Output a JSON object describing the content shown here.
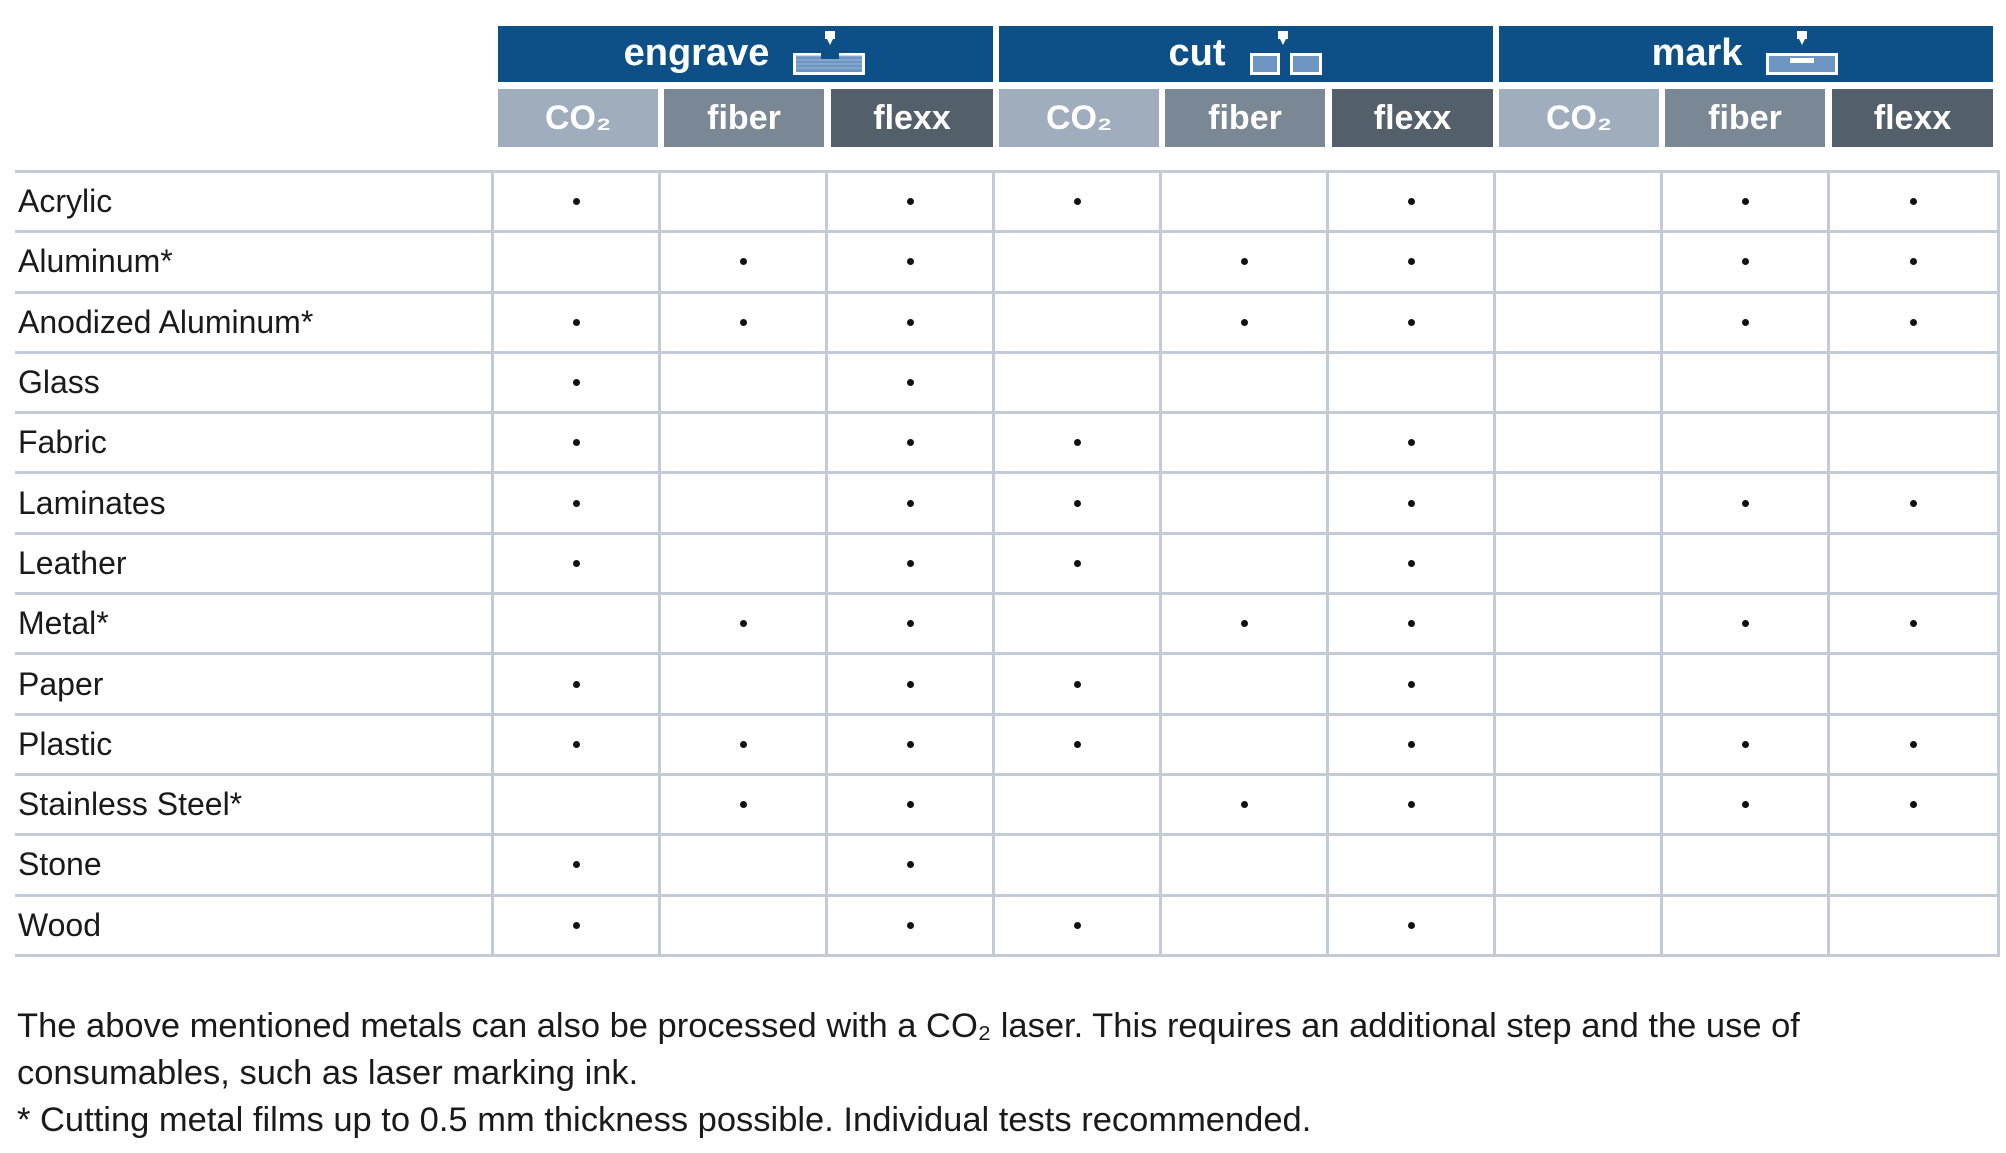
{
  "header": {
    "groups": [
      {
        "label": "engrave",
        "icon": "engrave-icon"
      },
      {
        "label": "cut",
        "icon": "cut-icon"
      },
      {
        "label": "mark",
        "icon": "mark-icon"
      }
    ],
    "subcolumns": [
      "CO₂",
      "fiber",
      "flexx"
    ]
  },
  "colors": {
    "group_header": "#0d4f87",
    "co2_header": "#9fadbd",
    "fiber_header": "#7a8896",
    "flexx_header": "#535f6b",
    "grid_line": "#c3ccd6"
  },
  "table": {
    "column_order": [
      "engrave-CO₂",
      "engrave-fiber",
      "engrave-flexx",
      "cut-CO₂",
      "cut-fiber",
      "cut-flexx",
      "mark-CO₂",
      "mark-fiber",
      "mark-flexx"
    ],
    "rows": [
      {
        "material": "Acrylic",
        "marks": [
          1,
          0,
          1,
          1,
          0,
          1,
          0,
          1,
          1
        ]
      },
      {
        "material": "Aluminum*",
        "marks": [
          0,
          1,
          1,
          0,
          1,
          1,
          0,
          1,
          1
        ]
      },
      {
        "material": "Anodized Aluminum*",
        "marks": [
          1,
          1,
          1,
          0,
          1,
          1,
          0,
          1,
          1
        ]
      },
      {
        "material": "Glass",
        "marks": [
          1,
          0,
          1,
          0,
          0,
          0,
          0,
          0,
          0
        ]
      },
      {
        "material": "Fabric",
        "marks": [
          1,
          0,
          1,
          1,
          0,
          1,
          0,
          0,
          0
        ]
      },
      {
        "material": "Laminates",
        "marks": [
          1,
          0,
          1,
          1,
          0,
          1,
          0,
          1,
          1
        ]
      },
      {
        "material": "Leather",
        "marks": [
          1,
          0,
          1,
          1,
          0,
          1,
          0,
          0,
          0
        ]
      },
      {
        "material": "Metal*",
        "marks": [
          0,
          1,
          1,
          0,
          1,
          1,
          0,
          1,
          1
        ]
      },
      {
        "material": "Paper",
        "marks": [
          1,
          0,
          1,
          1,
          0,
          1,
          0,
          0,
          0
        ]
      },
      {
        "material": "Plastic",
        "marks": [
          1,
          1,
          1,
          1,
          0,
          1,
          0,
          1,
          1
        ]
      },
      {
        "material": "Stainless Steel*",
        "marks": [
          0,
          1,
          1,
          0,
          1,
          1,
          0,
          1,
          1
        ]
      },
      {
        "material": "Stone",
        "marks": [
          1,
          0,
          1,
          0,
          0,
          0,
          0,
          0,
          0
        ]
      },
      {
        "material": "Wood",
        "marks": [
          1,
          0,
          1,
          1,
          0,
          1,
          0,
          0,
          0
        ]
      }
    ]
  },
  "footnotes": {
    "line1": "The above mentioned metals can also be processed with a CO₂ laser. This requires an additional step and the use of",
    "line2": "consumables, such as laser marking ink.",
    "line3": "* Cutting metal films up to 0.5 mm thickness possible. Individual tests recommended."
  }
}
